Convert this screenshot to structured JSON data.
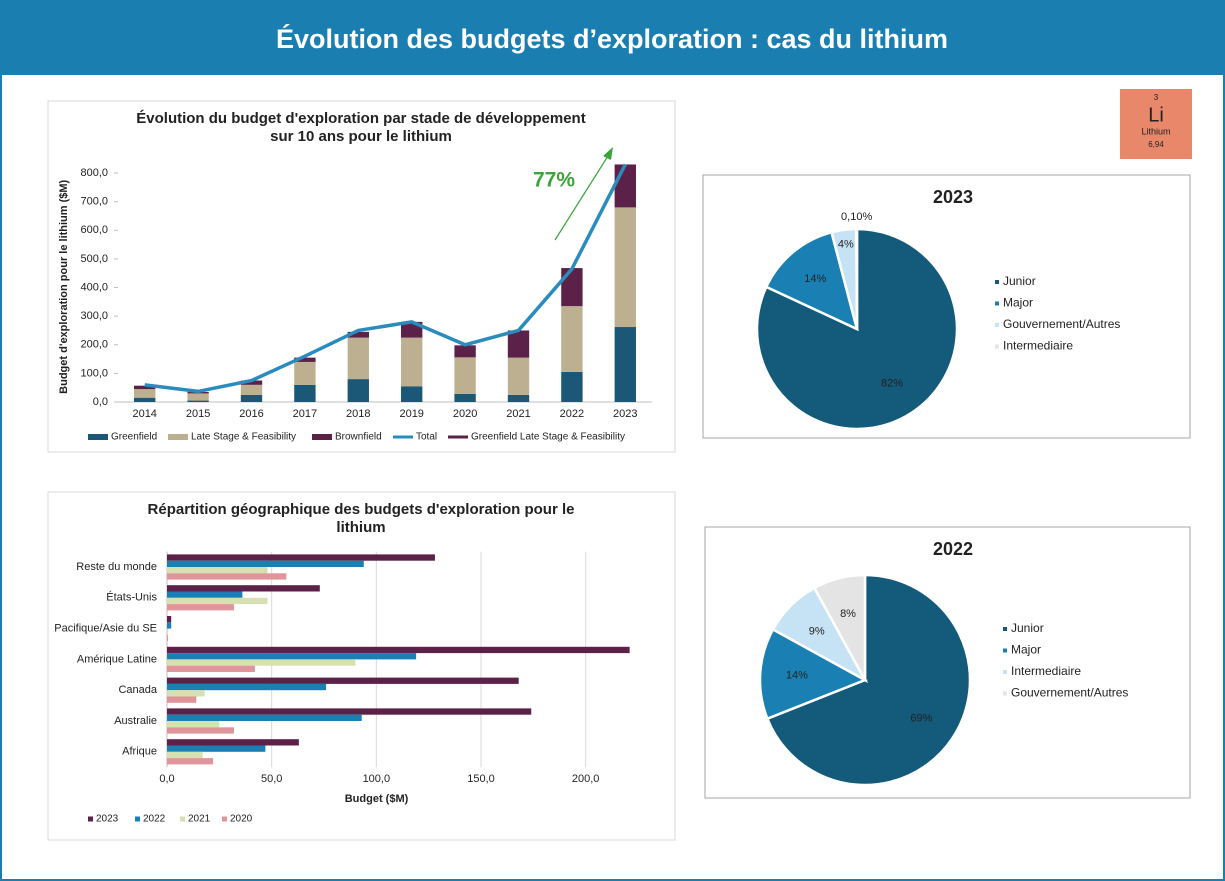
{
  "header": {
    "title": "Évolution des budgets d’exploration : cas du lithium"
  },
  "element": {
    "number": "3",
    "symbol": "Li",
    "name": "Lithium",
    "mass": "6,94"
  },
  "chart_data": [
    {
      "type": "stacked_bar_line",
      "title": [
        "Évolution du budget d'exploration par stade de développement",
        "sur 10 ans pour le lithium"
      ],
      "y_label": "Budget d'exploration pour le lithium ($M)",
      "categories": [
        "2014",
        "2015",
        "2016",
        "2017",
        "2018",
        "2019",
        "2020",
        "2021",
        "2022",
        "2023"
      ],
      "series": [
        {
          "name": "Greenfield",
          "color": "#1b5878",
          "kind": "bar",
          "values": [
            15,
            5,
            25,
            60,
            80,
            55,
            28,
            25,
            105,
            262
          ]
        },
        {
          "name": "Late Stage & Feasibility",
          "color": "#bdb090",
          "kind": "bar",
          "values": [
            30,
            25,
            35,
            80,
            145,
            170,
            128,
            130,
            230,
            418
          ]
        },
        {
          "name": "Brownfield",
          "color": "#5c2148",
          "kind": "bar",
          "values": [
            12,
            5,
            15,
            15,
            20,
            55,
            42,
            95,
            133,
            150
          ]
        },
        {
          "name": "Total",
          "color": "#2a8bbd",
          "kind": "line",
          "values": [
            60,
            37,
            75,
            160,
            250,
            280,
            200,
            250,
            465,
            830
          ]
        }
      ],
      "legend_extra": [
        {
          "name": "Greenfield Late Stage & Feasibility",
          "color": "#5c2148"
        }
      ],
      "annotation": {
        "text": "77%",
        "color": "#3aa53a"
      },
      "ylim": [
        0,
        840
      ],
      "yticks": [
        {
          "value": 0,
          "label": "0,0"
        },
        {
          "value": 100,
          "label": "100,0"
        },
        {
          "value": 200,
          "label": "200,0"
        },
        {
          "value": 300,
          "label": "300,0"
        },
        {
          "value": 400,
          "label": "400,0"
        },
        {
          "value": 500,
          "label": "500,0"
        },
        {
          "value": 600,
          "label": "600,0"
        },
        {
          "value": 700,
          "label": "700,0"
        },
        {
          "value": 800,
          "label": "800,0"
        }
      ]
    },
    {
      "type": "pie",
      "title": "2023",
      "labels": [
        "Junior",
        "Major",
        "Gouvernement/Autres",
        "Intermediaire"
      ],
      "values": [
        82,
        14,
        4,
        0.1
      ],
      "value_labels": [
        "82%",
        "14%",
        "4%",
        "0,10%"
      ],
      "colors": [
        "#145a7a",
        "#1a80b3",
        "#c5e3f4",
        "#e4e4e4"
      ]
    },
    {
      "type": "pie",
      "title": "2022",
      "labels": [
        "Junior",
        "Major",
        "Intermediaire",
        "Gouvernement/Autres"
      ],
      "values": [
        69,
        14,
        9,
        8
      ],
      "value_labels": [
        "69%",
        "14%",
        "9%",
        "8%"
      ],
      "colors": [
        "#145a7a",
        "#1a80b3",
        "#c5e3f4",
        "#e4e4e4"
      ]
    },
    {
      "type": "hbar",
      "title": [
        "Répartition géographique des budgets d'exploration pour le",
        "lithium"
      ],
      "x_label": "Budget ($M)",
      "categories": [
        "Reste du monde",
        "États-Unis",
        "Pacifique/Asie du SE",
        "Amérique Latine",
        "Canada",
        "Australie",
        "Afrique"
      ],
      "series": [
        {
          "name": "2023",
          "color": "#5c2148",
          "values": [
            128,
            73,
            2,
            221,
            168,
            174,
            63
          ]
        },
        {
          "name": "2022",
          "color": "#1a80b3",
          "values": [
            94,
            36,
            2,
            119,
            76,
            93,
            47
          ]
        },
        {
          "name": "2021",
          "color": "#d6e0b0",
          "values": [
            48,
            48,
            0.5,
            90,
            18,
            25,
            17
          ]
        },
        {
          "name": "2020",
          "color": "#e0959a",
          "values": [
            57,
            32,
            0.5,
            42,
            14,
            32,
            22
          ]
        }
      ],
      "xlim": [
        0,
        225
      ],
      "xticks": [
        {
          "value": 0,
          "label": "0,0"
        },
        {
          "value": 50,
          "label": "50,0"
        },
        {
          "value": 100,
          "label": "100,0"
        },
        {
          "value": 150,
          "label": "150,0"
        },
        {
          "value": 200,
          "label": "200,0"
        }
      ]
    }
  ]
}
